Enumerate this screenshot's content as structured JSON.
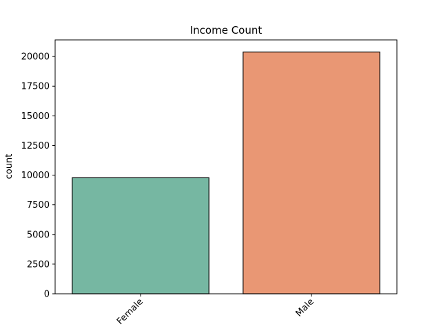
{
  "chart_data": {
    "type": "bar",
    "title": "Income Count",
    "xlabel": "",
    "ylabel": "count",
    "categories": [
      "Female",
      "Male"
    ],
    "values": [
      9782,
      20380
    ],
    "colors": [
      "#76b7a2",
      "#e99774"
    ],
    "edge_color": "#000000",
    "ylim": [
      0,
      21400
    ],
    "yticks": [
      0,
      2500,
      5000,
      7500,
      10000,
      12500,
      15000,
      17500,
      20000
    ],
    "ytick_labels": [
      "0",
      "2500",
      "5000",
      "7500",
      "10000",
      "12500",
      "15000",
      "17500",
      "20000"
    ],
    "xtick_rotation": 45,
    "grid": false,
    "legend": "none"
  }
}
